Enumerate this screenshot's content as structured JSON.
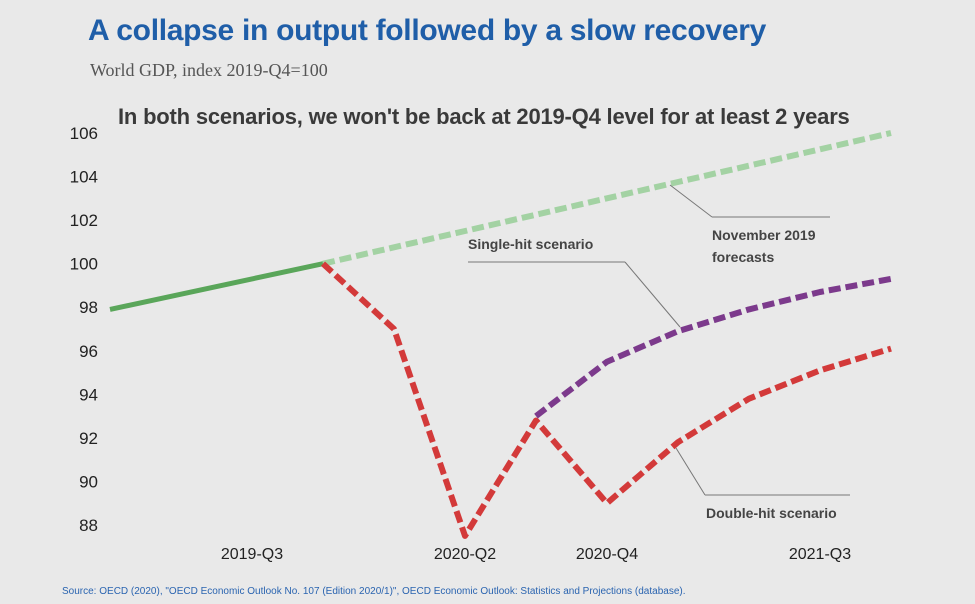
{
  "title": "A collapse in output followed by a slow recovery",
  "subtitle": "World GDP, index 2019-Q4=100",
  "annotation": "In both scenarios, we won't be back at 2019-Q4 level for at least 2 years",
  "source": "Source: OECD (2020), \"OECD Economic Outlook No. 107 (Edition 2020/1)\", OECD Economic Outlook: Statistics and Projections (database).",
  "chart_data": {
    "type": "line",
    "x": [
      "2019-Q1",
      "2019-Q2",
      "2019-Q3",
      "2019-Q4",
      "2020-Q1",
      "2020-Q2",
      "2020-Q3",
      "2020-Q4",
      "2021-Q1",
      "2021-Q2",
      "2021-Q3",
      "2021-Q4"
    ],
    "x_tick_labels": [
      "2019-Q3",
      "2020-Q2",
      "2020-Q4",
      "2021-Q3"
    ],
    "ylim": [
      88,
      106
    ],
    "y_ticks": [
      88,
      90,
      92,
      94,
      96,
      98,
      100,
      102,
      104,
      106
    ],
    "grid": false,
    "series": [
      {
        "key": "actual",
        "color": "#5aa65a",
        "dashed": false,
        "values": [
          97.9,
          98.6,
          99.3,
          100.0,
          null,
          null,
          null,
          null,
          null,
          null,
          null,
          null
        ]
      },
      {
        "key": "forecast",
        "name": "November 2019 forecasts",
        "color": "#a3d2a3",
        "dashed": true,
        "values": [
          null,
          null,
          null,
          100.0,
          100.75,
          101.5,
          102.25,
          103.0,
          103.75,
          104.5,
          105.25,
          106.0
        ]
      },
      {
        "key": "double_hit",
        "name": "Double-hit scenario",
        "color": "#d33a3a",
        "dashed": true,
        "values": [
          null,
          null,
          null,
          100.0,
          97.0,
          87.5,
          92.8,
          89.0,
          91.8,
          93.8,
          95.1,
          96.1
        ]
      },
      {
        "key": "single_hit",
        "name": "Single-hit scenario",
        "color": "#7c3a8c",
        "dashed": true,
        "values": [
          null,
          null,
          null,
          null,
          null,
          null,
          93.0,
          95.5,
          96.9,
          97.9,
          98.7,
          99.3
        ]
      }
    ]
  }
}
